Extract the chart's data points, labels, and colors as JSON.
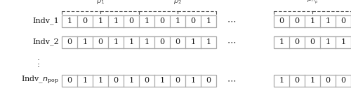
{
  "rows": [
    {
      "label": "Indv_1",
      "values_left": [
        1,
        0,
        1,
        1,
        0,
        1,
        0,
        1,
        0,
        1
      ],
      "values_right": [
        0,
        0,
        1,
        1,
        0
      ]
    },
    {
      "label": "Indv_2",
      "values_left": [
        0,
        1,
        0,
        1,
        1,
        1,
        0,
        0,
        1,
        1
      ],
      "values_right": [
        1,
        0,
        0,
        1,
        1
      ]
    },
    {
      "label": "Indv_npop",
      "values_left": [
        0,
        1,
        1,
        0,
        1,
        0,
        1,
        0,
        1,
        0
      ],
      "values_right": [
        1,
        0,
        1,
        0,
        0
      ]
    }
  ],
  "p1_label": "$p_1$",
  "p2_label": "$p_2$",
  "pnp_label": "$p_{n_p}$",
  "dots": "$\\cdot\\cdot\\cdot$",
  "box_color": "#aaaaaa",
  "text_color": "#1a1a1a",
  "brace_color": "#555555"
}
